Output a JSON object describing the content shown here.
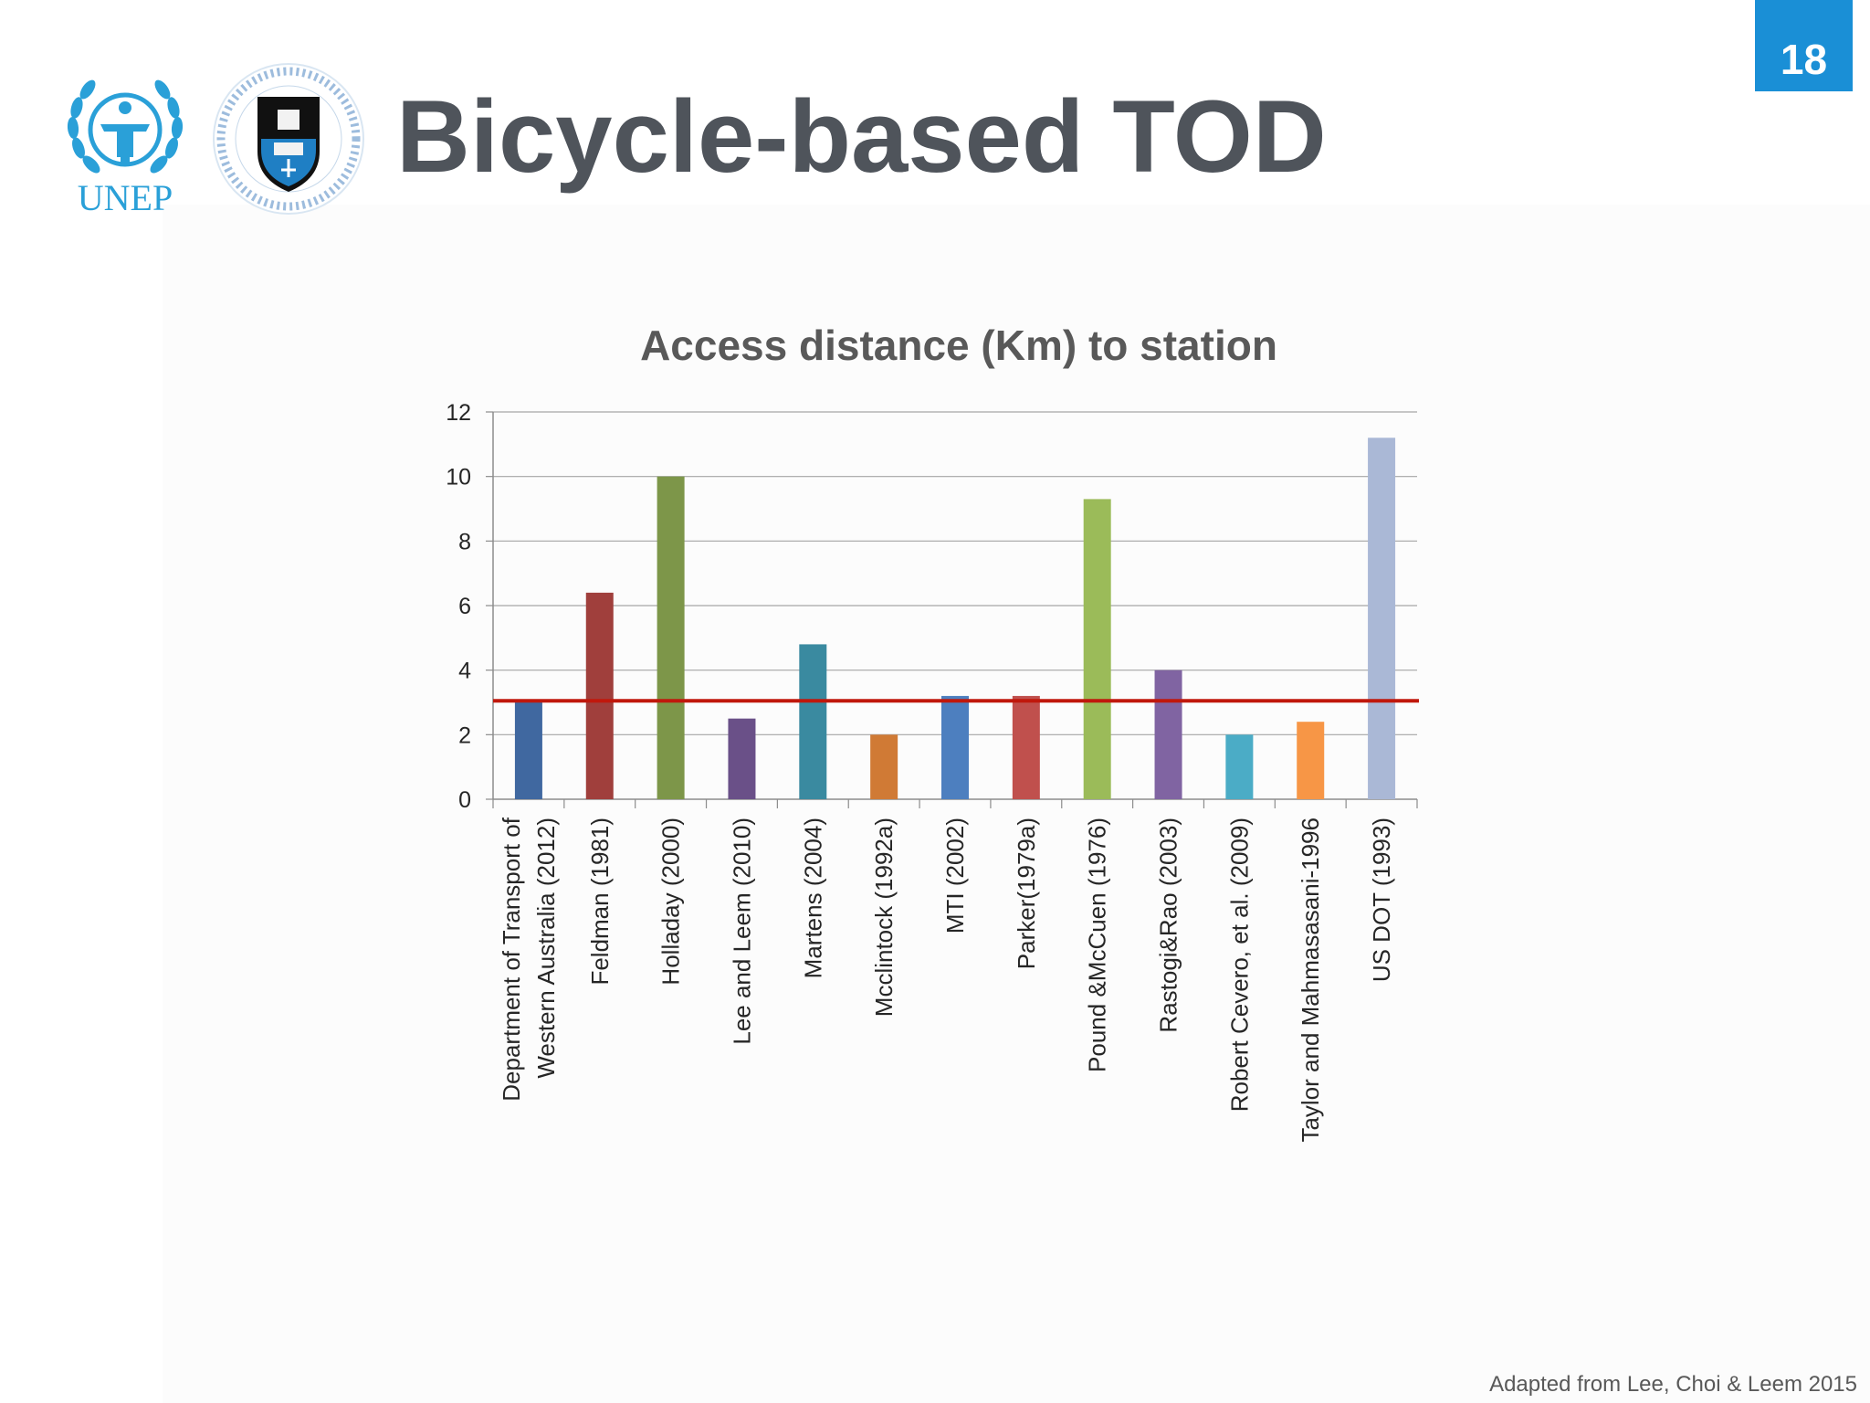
{
  "slide": {
    "page_number": "18",
    "title": "Bicycle-based TOD",
    "caption": "Adapted from Lee, Choi & Leem 2015",
    "logos": {
      "unep_text": "UNEP",
      "uct_ring_text": "University of Cape Town • Universiteit van Kaapstad • iYunivesithi yaseKapa"
    },
    "colors": {
      "badge": "#1a8fd6",
      "title": "#4f545b",
      "threshold_line": "#c0180c"
    }
  },
  "chart_data": {
    "type": "bar",
    "title": "Access distance (Km) to station",
    "xlabel": "",
    "ylabel": "",
    "ylim": [
      0,
      12
    ],
    "yticks": [
      0,
      2,
      4,
      6,
      8,
      10,
      12
    ],
    "grid": true,
    "legend": "none",
    "categories": [
      "Department of Transport of Western Australia (2012)",
      "Feldman (1981)",
      "Holladay (2000)",
      "Lee and Leem (2010)",
      "Martens (2004)",
      "Mcclintock (1992a)",
      "MTI (2002)",
      "Parker(1979a)",
      "Pound &McCuen (1976)",
      "Rastogi&Rao (2003)",
      "Robert Cevero, et al. (2009)",
      "Taylor and Mahmasasani-1996",
      "US DOT (1993)"
    ],
    "category_lines": [
      [
        "Department of Transport of",
        "Western Australia (2012)"
      ],
      [
        "Feldman (1981)"
      ],
      [
        "Holladay (2000)"
      ],
      [
        "Lee and Leem (2010)"
      ],
      [
        "Martens (2004)"
      ],
      [
        "Mcclintock (1992a)"
      ],
      [
        "MTI (2002)"
      ],
      [
        "Parker(1979a)"
      ],
      [
        "Pound &McCuen (1976)"
      ],
      [
        "Rastogi&Rao (2003)"
      ],
      [
        "Robert Cevero, et al. (2009)"
      ],
      [
        "Taylor and Mahmasasani-1996"
      ],
      [
        "US DOT (1993)"
      ]
    ],
    "values": [
      3.0,
      6.4,
      10.0,
      2.5,
      4.8,
      2.0,
      3.2,
      3.2,
      9.3,
      4.0,
      2.0,
      2.4,
      11.2
    ],
    "colors": [
      "#4068a0",
      "#a03f3c",
      "#7d9649",
      "#6a5088",
      "#3a8aa0",
      "#d07a35",
      "#4d7fbf",
      "#c0504d",
      "#9bbb59",
      "#8064a2",
      "#4bacc6",
      "#f79646",
      "#aab8d6"
    ],
    "reference_line": {
      "value": 3.05,
      "color": "#c0180c"
    }
  }
}
